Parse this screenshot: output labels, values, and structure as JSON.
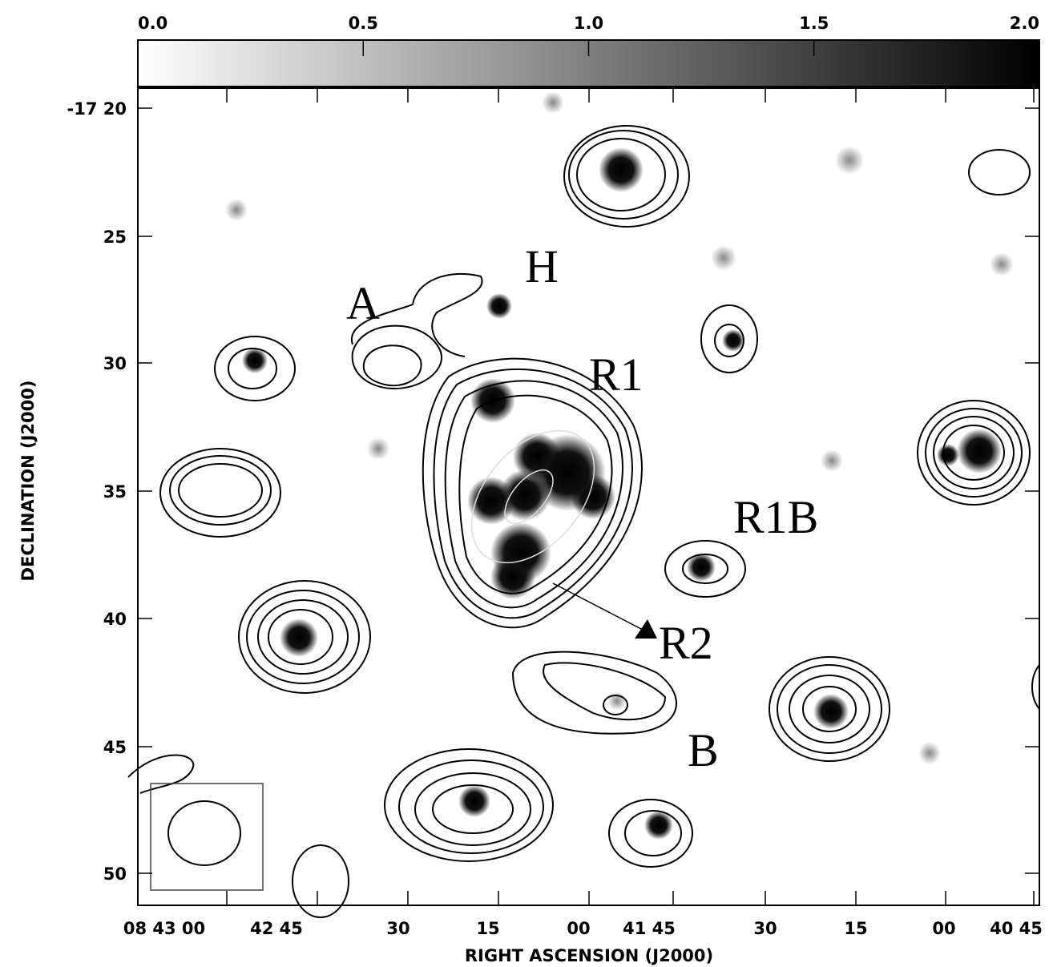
{
  "colorbar": {
    "ticks": [
      "0.0",
      "0.5",
      "1.0",
      "1.5",
      "2.0"
    ]
  },
  "x_axis": {
    "label": "RIGHT ASCENSION (J2000)",
    "ticks": [
      "08 43 00",
      "42 45",
      "30",
      "15",
      "00",
      "41 45",
      "30",
      "15",
      "00",
      "40 45"
    ]
  },
  "y_axis": {
    "label": "DECLINATION (J2000)",
    "ticks": [
      "-17 20",
      "25",
      "30",
      "35",
      "40",
      "45",
      "50"
    ]
  },
  "annotations": [
    "H",
    "A",
    "R1",
    "R1B",
    "R2",
    "B"
  ]
}
